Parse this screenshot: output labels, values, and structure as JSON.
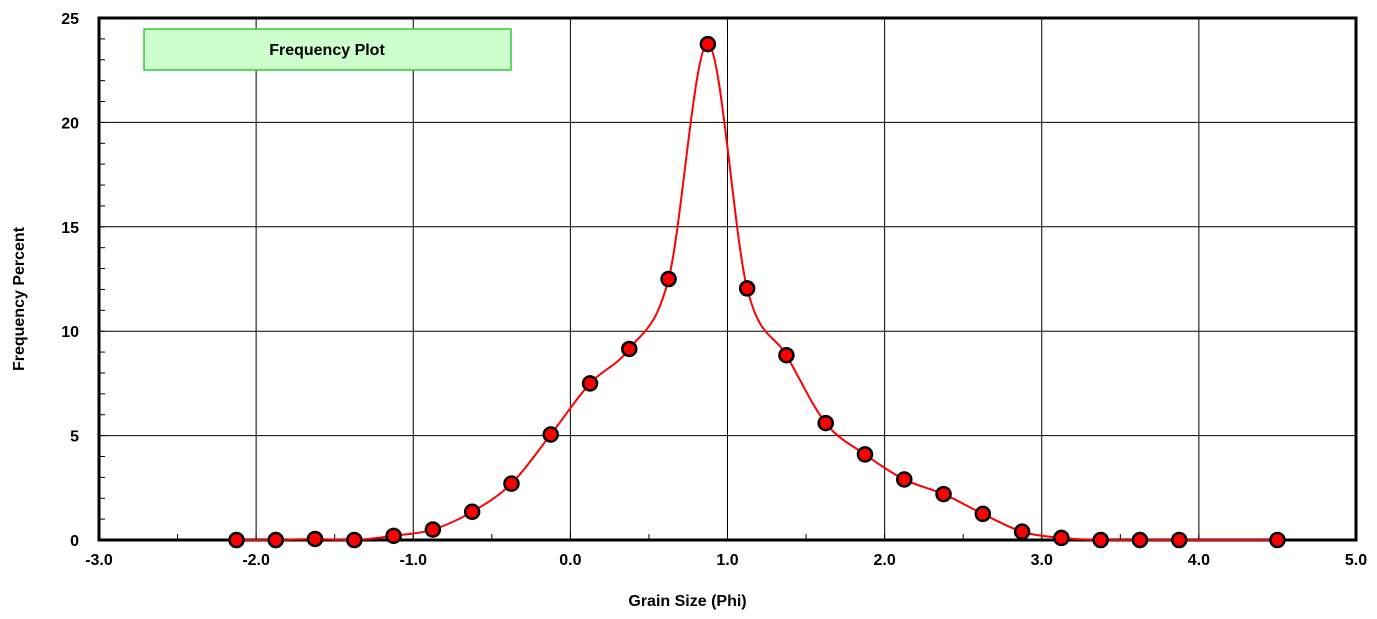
{
  "chart_data": {
    "type": "line",
    "title": "Frequency Plot",
    "xlabel": "Grain Size (Phi)",
    "ylabel": "Frequency Percent",
    "xlim": [
      -3.0,
      5.0
    ],
    "ylim": [
      0,
      25
    ],
    "x_ticks": [
      "-3.0",
      "-2.0",
      "-1.0",
      "0.0",
      "1.0",
      "2.0",
      "3.0",
      "4.0",
      "5.0"
    ],
    "y_ticks": [
      "0",
      "5",
      "10",
      "15",
      "20",
      "25"
    ],
    "grid": true,
    "series": [
      {
        "x": [
          -2.125,
          -1.875,
          -1.625,
          -1.375,
          -1.125,
          -0.875,
          -0.625,
          -0.375,
          -0.125,
          0.125,
          0.375,
          0.625,
          0.875,
          1.125,
          1.375,
          1.625,
          1.875,
          2.125,
          2.375,
          2.625,
          2.875,
          3.125,
          3.375,
          3.625,
          3.875,
          4.5
        ],
        "y": [
          0.0,
          0.0,
          0.05,
          0.0,
          0.2,
          0.5,
          1.35,
          2.7,
          5.05,
          7.5,
          9.15,
          12.5,
          23.75,
          12.05,
          8.85,
          5.6,
          4.1,
          2.9,
          2.2,
          1.25,
          0.4,
          0.1,
          0.0,
          0.0,
          0.0,
          0.0
        ]
      }
    ],
    "colors": {
      "line": "#ff0000",
      "marker_fill": "#ff0000",
      "marker_stroke": "#000000",
      "title_box_fill": "#ccffcc",
      "title_box_stroke": "#33cc33",
      "grid": "#000000"
    }
  }
}
